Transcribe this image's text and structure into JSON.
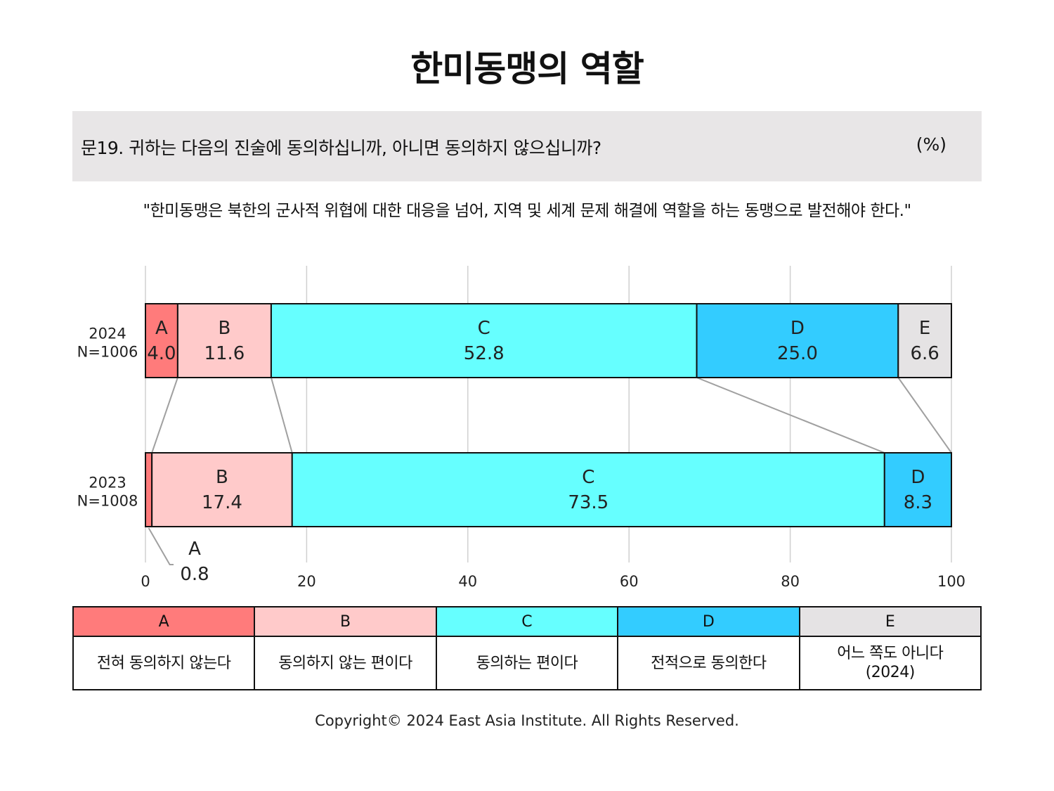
{
  "title": "한미동맹의 역할",
  "question": {
    "text": "문19. 귀하는 다음의 진술에 동의하십니까, 아니면 동의하지 않으십니까?",
    "unit": "(%)"
  },
  "statement": "\"한미동맹은 북한의 군사적 위협에 대한 대응을 넘어, 지역 및 세계 문제 해결에 역할을 하는 동맹으로 발전해야 한다.\"",
  "colors": {
    "A": "#ff7b7b",
    "B": "#ffcaca",
    "C": "#66ffff",
    "D": "#33ccff",
    "E": "#e5e3e4"
  },
  "chart_data": {
    "type": "bar",
    "orientation": "horizontal",
    "stacked": true,
    "xlim": [
      0,
      100
    ],
    "ticks": [
      "0",
      "20",
      "40",
      "60",
      "80",
      "100"
    ],
    "grid": true,
    "categories": [
      {
        "year": "2024",
        "n": "N=1006"
      },
      {
        "year": "2023",
        "n": "N=1008"
      }
    ],
    "series": [
      {
        "name": "A",
        "values": [
          4.0,
          0.8
        ]
      },
      {
        "name": "B",
        "values": [
          11.6,
          17.4
        ]
      },
      {
        "name": "C",
        "values": [
          52.8,
          73.5
        ]
      },
      {
        "name": "D",
        "values": [
          25.0,
          8.3
        ]
      },
      {
        "name": "E",
        "values": [
          6.6,
          null
        ]
      }
    ]
  },
  "legend": [
    {
      "key": "A",
      "label": "전혀 동의하지 않는다"
    },
    {
      "key": "B",
      "label": "동의하지 않는 편이다"
    },
    {
      "key": "C",
      "label": "동의하는 편이다"
    },
    {
      "key": "D",
      "label": "전적으로 동의한다"
    },
    {
      "key": "E",
      "label": "어느 쪽도 아니다\n(2024)"
    }
  ],
  "copyright": "Copyright© 2024 East Asia Institute. All Rights Reserved."
}
